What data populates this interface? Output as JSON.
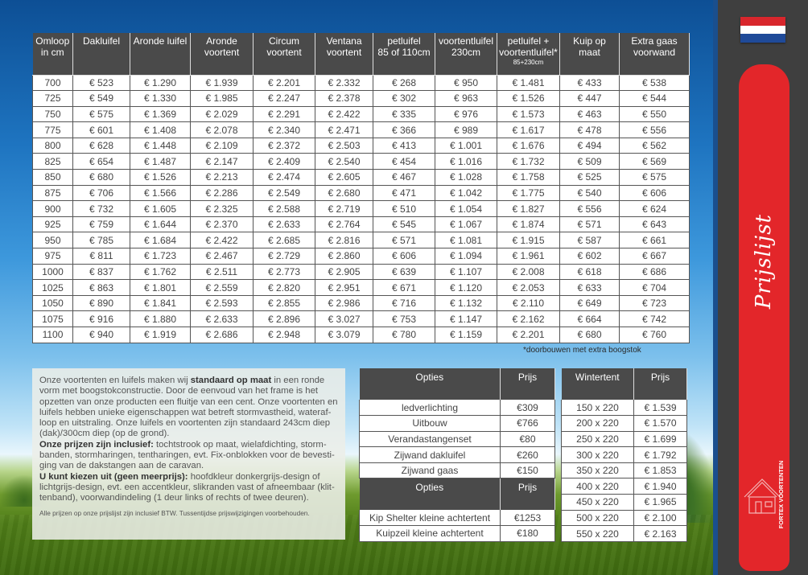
{
  "main_table": {
    "headers": [
      {
        "line1": "Omloop",
        "line2": "in cm",
        "small": ""
      },
      {
        "line1": "Dakluifel",
        "line2": "",
        "small": ""
      },
      {
        "line1": "Aronde luifel",
        "line2": "",
        "small": ""
      },
      {
        "line1": "Aronde",
        "line2": "voortent",
        "small": ""
      },
      {
        "line1": "Circum",
        "line2": "voortent",
        "small": ""
      },
      {
        "line1": "Ventana",
        "line2": "voortent",
        "small": ""
      },
      {
        "line1": "petluifel",
        "line2": "85 of 110cm",
        "small": ""
      },
      {
        "line1": "voortentluifel",
        "line2": "230cm",
        "small": ""
      },
      {
        "line1": "petluifel +",
        "line2": "voortentluifel*",
        "small": "85+230cm"
      },
      {
        "line1": "Kuip op maat",
        "line2": "",
        "small": ""
      },
      {
        "line1": "Extra gaas",
        "line2": "voorwand",
        "small": ""
      }
    ],
    "rows": [
      [
        "700",
        "€ 523",
        "€ 1.290",
        "€ 1.939",
        "€ 2.201",
        "€ 2.332",
        "€ 268",
        "€ 950",
        "€ 1.481",
        "€ 433",
        "€ 538"
      ],
      [
        "725",
        "€ 549",
        "€ 1.330",
        "€ 1.985",
        "€ 2.247",
        "€ 2.378",
        "€ 302",
        "€ 963",
        "€ 1.526",
        "€ 447",
        "€ 544"
      ],
      [
        "750",
        "€ 575",
        "€ 1.369",
        "€ 2.029",
        "€ 2.291",
        "€ 2.422",
        "€ 335",
        "€ 976",
        "€ 1.573",
        "€ 463",
        "€ 550"
      ],
      [
        "775",
        "€ 601",
        "€ 1.408",
        "€ 2.078",
        "€ 2.340",
        "€ 2.471",
        "€ 366",
        "€ 989",
        "€ 1.617",
        "€ 478",
        "€ 556"
      ],
      [
        "800",
        "€ 628",
        "€ 1.448",
        "€ 2.109",
        "€ 2.372",
        "€ 2.503",
        "€ 413",
        "€ 1.001",
        "€ 1.676",
        "€ 494",
        "€ 562"
      ],
      [
        "825",
        "€ 654",
        "€ 1.487",
        "€ 2.147",
        "€ 2.409",
        "€ 2.540",
        "€ 454",
        "€ 1.016",
        "€ 1.732",
        "€ 509",
        "€ 569"
      ],
      [
        "850",
        "€ 680",
        "€ 1.526",
        "€ 2.213",
        "€ 2.474",
        "€ 2.605",
        "€ 467",
        "€ 1.028",
        "€ 1.758",
        "€ 525",
        "€ 575"
      ],
      [
        "875",
        "€ 706",
        "€ 1.566",
        "€ 2.286",
        "€ 2.549",
        "€ 2.680",
        "€ 471",
        "€ 1.042",
        "€ 1.775",
        "€ 540",
        "€ 606"
      ],
      [
        "900",
        "€ 732",
        "€ 1.605",
        "€ 2.325",
        "€ 2.588",
        "€ 2.719",
        "€ 510",
        "€ 1.054",
        "€ 1.827",
        "€ 556",
        "€ 624"
      ],
      [
        "925",
        "€ 759",
        "€ 1.644",
        "€ 2.370",
        "€ 2.633",
        "€ 2.764",
        "€ 545",
        "€ 1.067",
        "€ 1.874",
        "€ 571",
        "€ 643"
      ],
      [
        "950",
        "€ 785",
        "€ 1.684",
        "€ 2.422",
        "€ 2.685",
        "€ 2.816",
        "€ 571",
        "€ 1.081",
        "€ 1.915",
        "€ 587",
        "€ 661"
      ],
      [
        "975",
        "€ 811",
        "€ 1.723",
        "€ 2.467",
        "€ 2.729",
        "€ 2.860",
        "€ 606",
        "€ 1.094",
        "€ 1.961",
        "€ 602",
        "€ 667"
      ],
      [
        "1000",
        "€ 837",
        "€ 1.762",
        "€ 2.511",
        "€ 2.773",
        "€ 2.905",
        "€ 639",
        "€ 1.107",
        "€ 2.008",
        "€ 618",
        "€ 686"
      ],
      [
        "1025",
        "€ 863",
        "€ 1.801",
        "€ 2.559",
        "€ 2.820",
        "€ 2.951",
        "€ 671",
        "€ 1.120",
        "€ 2.053",
        "€ 633",
        "€ 704"
      ],
      [
        "1050",
        "€ 890",
        "€ 1.841",
        "€ 2.593",
        "€ 2.855",
        "€ 2.986",
        "€ 716",
        "€ 1.132",
        "€ 2.110",
        "€ 649",
        "€ 723"
      ],
      [
        "1075",
        "€ 916",
        "€ 1.880",
        "€ 2.633",
        "€ 2.896",
        "€ 3.027",
        "€ 753",
        "€ 1.147",
        "€ 2.162",
        "€ 664",
        "€ 742"
      ],
      [
        "1100",
        "€ 940",
        "€ 1.919",
        "€ 2.686",
        "€ 2.948",
        "€ 3.079",
        "€ 780",
        "€ 1.159",
        "€ 2.201",
        "€ 680",
        "€ 760"
      ]
    ]
  },
  "footnote": "*doorbouwen met extra boogstok",
  "text_panel": {
    "intro_a": "Onze voortenten en luifels maken wij ",
    "intro_b": "standaard op maat",
    "intro_c": " in een ronde vorm met boogstokconstructie. Door de eenvoud van het frame is het opzetten van onze producten een fluitje van een cent. Onze voortenten en luifels hebben unieke eigenschappen wat betreft stormvastheid, wateraf­loop en uitstraling. Onze luifels en voortenten zijn standaard 243cm diep (dak)/300cm diep (op de grond).",
    "incl_title": "Onze prijzen zijn inclusief:",
    "incl_text": " tochtstrook op maat, wielafdichting, storm­banden, stormharingen, tentharingen, evt. Fix-onblokken voor de bevesti­ging van de dakstangen aan de caravan.",
    "choice_title": "U kunt kiezen uit (geen meerprijs):",
    "choice_text": " hoofdkleur donkergrijs-design of lichtgrijs-design, evt. een accentkleur, slikranden vast of afneembaar (klit­tenband), voorwandindeling (1 deur links of rechts of twee deuren).",
    "disclaimer": "Alle prijzen op onze prijslijst zijn inclusief BTW. Tussentijdse prijswijzigingen voorbehouden."
  },
  "opties_table": {
    "header_left": "Opties",
    "header_right": "Prijs",
    "rows": [
      [
        "ledverlichting",
        "€309"
      ],
      [
        "Uitbouw",
        "€766"
      ],
      [
        "Verandastangenset",
        "€80"
      ],
      [
        "Zijwand dakluifel",
        "€260"
      ],
      [
        "Zijwand gaas",
        "€150"
      ]
    ],
    "header2_left": "Opties",
    "header2_right": "Prijs",
    "rows2": [
      [
        "Kip Shelter kleine achtertent",
        "€1253"
      ],
      [
        "Kuipzeil kleine achtertent",
        "€180"
      ]
    ]
  },
  "winter_table": {
    "header_left": "Wintertent",
    "header_right": "Prijs",
    "rows": [
      [
        "150 x 220",
        "€ 1.539"
      ],
      [
        "200 x 220",
        "€ 1.570"
      ],
      [
        "250 x 220",
        "€ 1.699"
      ],
      [
        "300 x 220",
        "€ 1.792"
      ],
      [
        "350 x 220",
        "€ 1.853"
      ],
      [
        "400 x 220",
        "€ 1.940"
      ],
      [
        "450 x 220",
        "€ 1.965"
      ],
      [
        "500 x 220",
        "€ 2.100"
      ],
      [
        "550 x 220",
        "€ 2.163"
      ]
    ]
  },
  "sidebar": {
    "title": "Prijslijst",
    "logo_text": "FORTEX VOORTENTEN"
  },
  "colors": {
    "header_bg": "#4a4a4a",
    "sidebar_red": "#e3262a",
    "sidebar_dark": "#3f3f3f",
    "flag_red": "#d8262c",
    "flag_blue": "#1f4a99"
  }
}
